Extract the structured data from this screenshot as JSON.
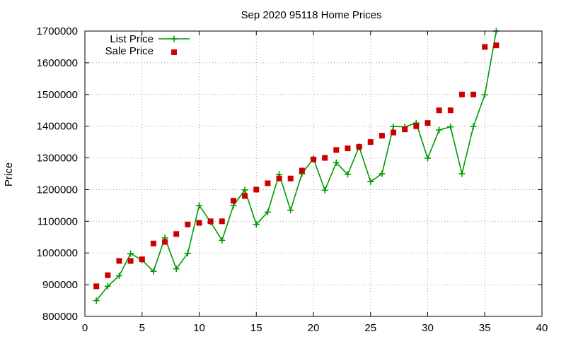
{
  "chart_data": {
    "type": "line",
    "title": "Sep 2020 95118 Home Prices",
    "xlabel": "",
    "ylabel": "Price",
    "xlim": [
      0,
      40
    ],
    "ylim": [
      800000,
      1700000
    ],
    "xticks": [
      "0",
      "5",
      "10",
      "15",
      "20",
      "25",
      "30",
      "35",
      "40"
    ],
    "yticks": [
      "800000",
      "900000",
      "1000000",
      "1100000",
      "1200000",
      "1300000",
      "1400000",
      "1500000",
      "1600000",
      "1700000"
    ],
    "grid": true,
    "legend_position": "top-left",
    "series": [
      {
        "name": "List Price",
        "style": "line-plus",
        "color": "#009900",
        "x": [
          1,
          2,
          3,
          4,
          5,
          6,
          7,
          8,
          9,
          10,
          11,
          12,
          13,
          14,
          15,
          16,
          17,
          18,
          19,
          20,
          21,
          22,
          23,
          24,
          25,
          26,
          27,
          28,
          29,
          30,
          31,
          32,
          33,
          34,
          35,
          36
        ],
        "values": [
          850000,
          895000,
          928000,
          998000,
          978000,
          942000,
          1048000,
          950000,
          999000,
          1150000,
          1098000,
          1040000,
          1150000,
          1199000,
          1090000,
          1129000,
          1248000,
          1135000,
          1250000,
          1298000,
          1198000,
          1285000,
          1248000,
          1335000,
          1225000,
          1250000,
          1399000,
          1398000,
          1410000,
          1299000,
          1388000,
          1398000,
          1250000,
          1399000,
          1499000,
          1700000
        ]
      },
      {
        "name": "Sale Price",
        "style": "square",
        "color": "#cc0000",
        "x": [
          1,
          2,
          3,
          4,
          5,
          6,
          7,
          8,
          9,
          10,
          11,
          12,
          13,
          14,
          15,
          16,
          17,
          18,
          19,
          20,
          21,
          22,
          23,
          24,
          25,
          26,
          27,
          28,
          29,
          30,
          31,
          32,
          33,
          34,
          35,
          36
        ],
        "values": [
          895000,
          930000,
          975000,
          975000,
          980000,
          1030000,
          1035000,
          1060000,
          1090000,
          1095000,
          1100000,
          1100000,
          1165000,
          1180000,
          1200000,
          1220000,
          1235000,
          1235000,
          1260000,
          1295000,
          1300000,
          1325000,
          1330000,
          1335000,
          1350000,
          1370000,
          1380000,
          1390000,
          1400000,
          1410000,
          1450000,
          1450000,
          1500000,
          1500000,
          1650000,
          1655000
        ]
      }
    ]
  }
}
